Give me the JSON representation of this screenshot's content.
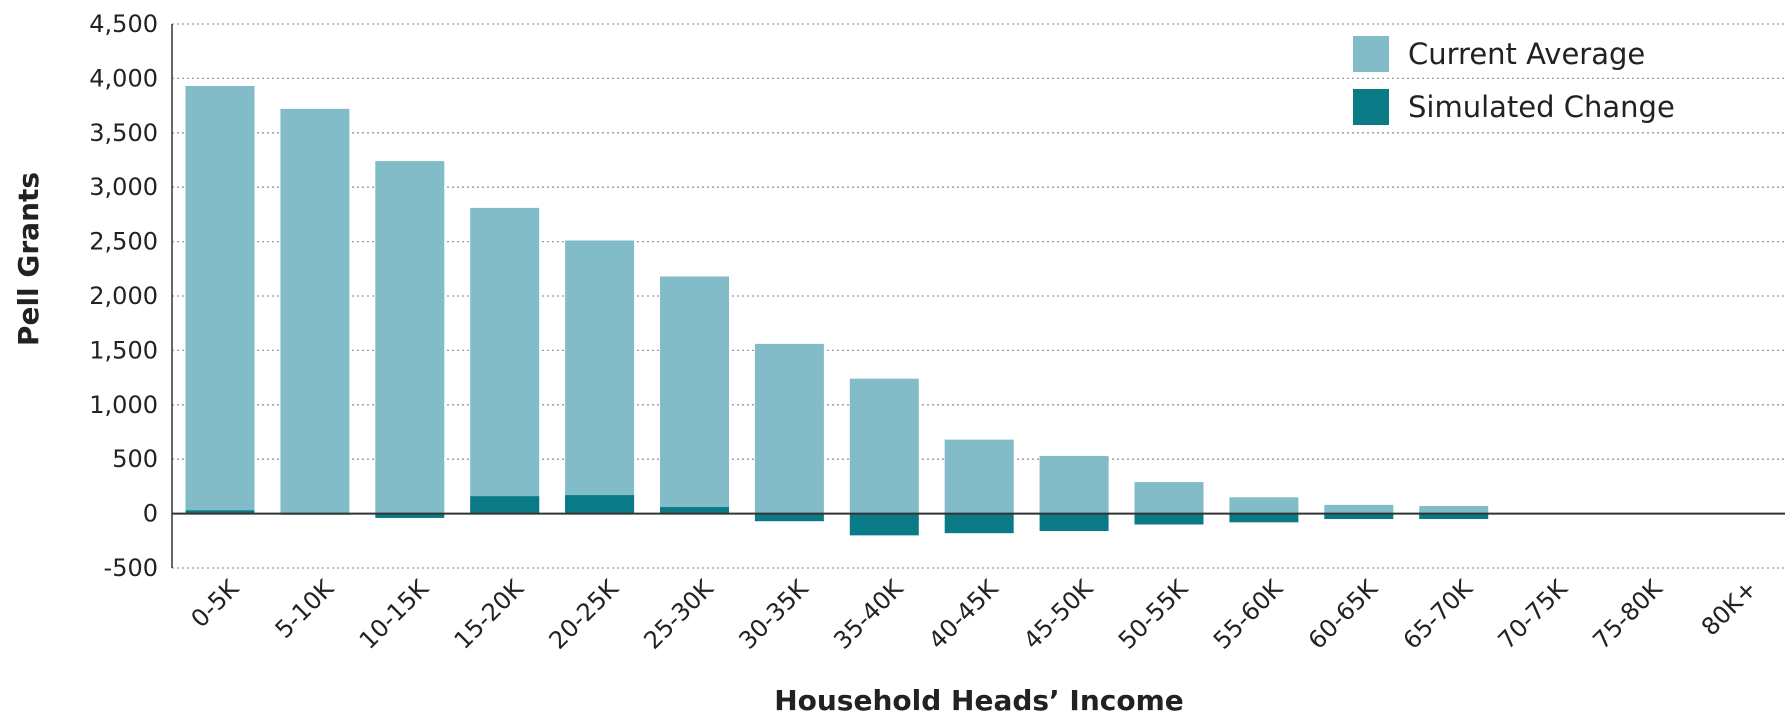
{
  "chart_data": {
    "type": "bar",
    "xlabel": "Household Heads’ Income",
    "ylabel": "Pell Grants",
    "ylim": [
      -500,
      4500
    ],
    "yticks": [
      -500,
      0,
      500,
      1000,
      1500,
      2000,
      2500,
      3000,
      3500,
      4000,
      4500
    ],
    "ytick_labels": [
      "-500",
      "0",
      "500",
      "1,000",
      "1,500",
      "2,000",
      "2,500",
      "3,000",
      "3,500",
      "4,000",
      "4,500"
    ],
    "grid": "horizontal dotted",
    "legend_position": "top-right",
    "categories": [
      "0-5K",
      "5-10K",
      "10-15K",
      "15-20K",
      "20-25K",
      "25-30K",
      "30-35K",
      "35-40K",
      "40-45K",
      "45-50K",
      "50-55K",
      "55-60K",
      "60-65K",
      "65-70K",
      "70-75K",
      "75-80K",
      "80K+"
    ],
    "series": [
      {
        "name": "Current Average",
        "color": "#82bcc9",
        "values": [
          3930,
          3720,
          3240,
          2810,
          2510,
          2180,
          1560,
          1240,
          680,
          530,
          290,
          150,
          80,
          70,
          5,
          5,
          0
        ]
      },
      {
        "name": "Simulated Change",
        "color": "#0b7a87",
        "values": [
          30,
          -10,
          -40,
          160,
          170,
          60,
          -70,
          -200,
          -180,
          -160,
          -100,
          -80,
          -50,
          -50,
          0,
          0,
          0
        ]
      }
    ]
  }
}
